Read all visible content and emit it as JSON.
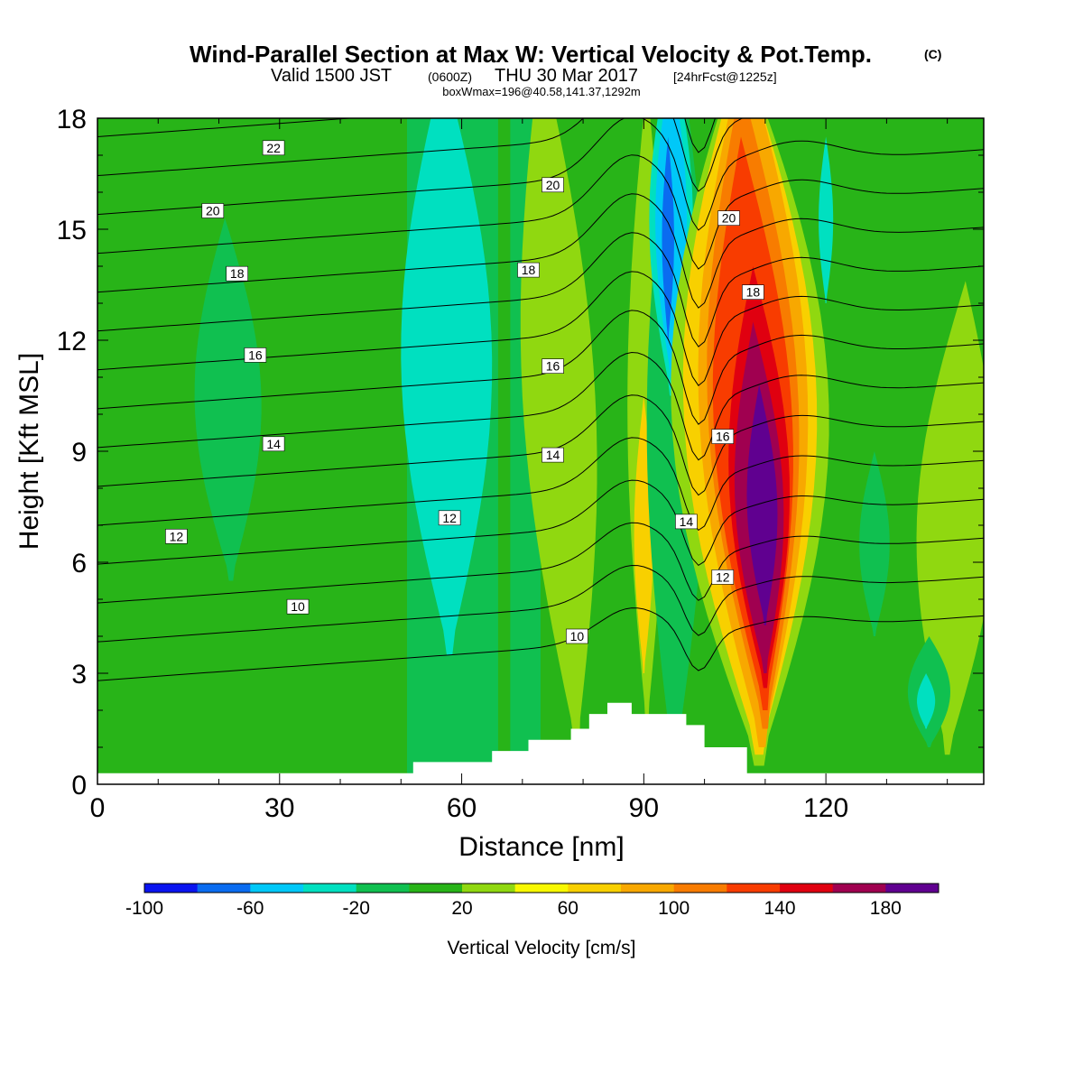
{
  "title": {
    "main": "Wind-Parallel Section at Max W: Vertical Velocity & Pot.Temp.",
    "main_mark": "(C)",
    "valid_prefix": "Valid 1500 JST",
    "valid_z": "(0600Z)",
    "valid_date": "THU 30 Mar 2017",
    "valid_fcst": "[24hrFcst@1225z]",
    "box": "boxWmax=196@40.58,141.37,1292m"
  },
  "chart_data": {
    "type": "heatmap",
    "xlabel": "Distance [nm]",
    "ylabel": "Height [Kft MSL]",
    "xlim": [
      0,
      146
    ],
    "ylim": [
      0,
      18
    ],
    "x_ticks": [
      "0",
      "30",
      "60",
      "90",
      "120"
    ],
    "y_ticks": [
      "0",
      "3",
      "6",
      "9",
      "12",
      "15",
      "18"
    ],
    "colorbar": {
      "label": "Vertical Velocity [cm/s]",
      "levels": [
        -100,
        -80,
        -60,
        -40,
        -20,
        0,
        20,
        40,
        60,
        80,
        100,
        120,
        140,
        160,
        180,
        200
      ],
      "tick_labels": [
        "-100",
        "-60",
        "-20",
        "20",
        "60",
        "100",
        "140",
        "180"
      ],
      "colors": [
        "#0a14f0",
        "#0a6cf0",
        "#00c8f8",
        "#00e0c0",
        "#10c050",
        "#28b418",
        "#90d810",
        "#f8f800",
        "#f8d000",
        "#f8a800",
        "#f87c00",
        "#f83c00",
        "#e00010",
        "#a00050",
        "#600090"
      ]
    },
    "w_field_cm_s": [
      {
        "feature": "background",
        "value": 10
      },
      {
        "feature": "weak descent column",
        "x_center": 22,
        "height_range": [
          6,
          15
        ],
        "value": -10
      },
      {
        "feature": "descent band",
        "x_center": 58,
        "height_range": [
          4,
          18
        ],
        "value": -30
      },
      {
        "feature": "ascent band",
        "x_center": 78,
        "height_range": [
          1,
          18
        ],
        "value": 30
      },
      {
        "feature": "ascent core",
        "x_center": 90,
        "height_range": [
          3,
          10
        ],
        "value": 60
      },
      {
        "feature": "descent core",
        "x_center": 94,
        "height_range": [
          11,
          18
        ],
        "value": -80
      },
      {
        "feature": "main updraft",
        "x_center": 110,
        "height_range": [
          0.5,
          18
        ],
        "value": 196
      },
      {
        "feature": "weak descent column",
        "x_center": 120,
        "height_range": [
          13,
          17
        ],
        "value": -30
      },
      {
        "feature": "ascent column",
        "x_center": 140,
        "height_range": [
          0.5,
          13.5
        ],
        "value": 30
      }
    ],
    "pot_temp_contours_c": [
      {
        "value": 10,
        "label_position": [
          33,
          4.8
        ]
      },
      {
        "value": 12,
        "label_position": [
          13,
          6.7
        ]
      },
      {
        "value": 14,
        "label_position": [
          29,
          9.2
        ]
      },
      {
        "value": 16,
        "label_position": [
          26,
          11.6
        ]
      },
      {
        "value": 18,
        "label_position": [
          23,
          13.8
        ]
      },
      {
        "value": 20,
        "label_position": [
          19,
          15.5
        ]
      },
      {
        "value": 22,
        "label_position": [
          29,
          17.2
        ]
      }
    ],
    "contour_labels": [
      {
        "text": "22",
        "x": 29,
        "y": 17.2
      },
      {
        "text": "20",
        "x": 19,
        "y": 15.5
      },
      {
        "text": "18",
        "x": 23,
        "y": 13.8
      },
      {
        "text": "16",
        "x": 26,
        "y": 11.6
      },
      {
        "text": "14",
        "x": 29,
        "y": 9.2
      },
      {
        "text": "12",
        "x": 13,
        "y": 6.7
      },
      {
        "text": "10",
        "x": 33,
        "y": 4.8
      },
      {
        "text": "12",
        "x": 58,
        "y": 7.2
      },
      {
        "text": "20",
        "x": 75,
        "y": 16.2
      },
      {
        "text": "18",
        "x": 71,
        "y": 13.9
      },
      {
        "text": "16",
        "x": 75,
        "y": 11.3
      },
      {
        "text": "14",
        "x": 75,
        "y": 8.9
      },
      {
        "text": "10",
        "x": 79,
        "y": 4.0
      },
      {
        "text": "20",
        "x": 104,
        "y": 15.3
      },
      {
        "text": "18",
        "x": 108,
        "y": 13.3
      },
      {
        "text": "16",
        "x": 103,
        "y": 9.4
      },
      {
        "text": "14",
        "x": 97,
        "y": 7.1
      },
      {
        "text": "12",
        "x": 103,
        "y": 5.6
      }
    ],
    "terrain_kft": {
      "x": [
        0,
        52,
        52,
        65,
        65,
        71,
        71,
        78,
        78,
        81,
        81,
        84,
        84,
        88,
        88,
        94,
        94,
        97,
        97,
        100,
        100,
        107,
        107,
        146
      ],
      "h": [
        0.3,
        0.3,
        0.6,
        0.6,
        0.9,
        0.9,
        1.2,
        1.2,
        1.5,
        1.5,
        1.9,
        1.9,
        2.2,
        2.2,
        1.9,
        1.9,
        1.9,
        1.9,
        1.6,
        1.6,
        1.0,
        1.0,
        0.3,
        0.3
      ]
    }
  }
}
